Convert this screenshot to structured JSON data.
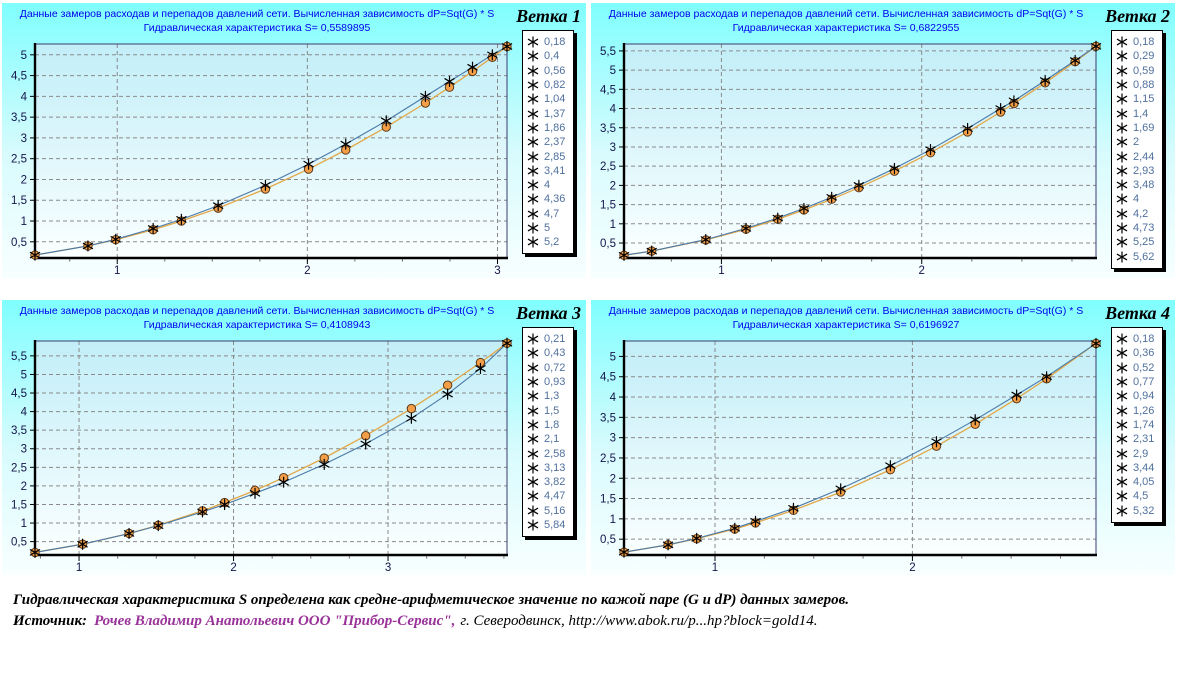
{
  "colors": {
    "panel_top": "#7ffefe",
    "plot_top": "#c2eef8",
    "plot_bottom": "#fbffff",
    "title_text": "#0000ee",
    "axis_label_text": "#14144a",
    "legend_text": "#50719e",
    "measured_line": "#4a7aa8",
    "fitted_line": "#e2a848",
    "circle_fill": "#f49f47",
    "circle_stroke": "#5a3a1a",
    "star_marker": "#000000",
    "source_author_color": "#993399"
  },
  "chart_data": [
    {
      "type": "scatter",
      "branch": "Ветка 1",
      "title_line1": "Данные замеров расходав и перепадов давлений сети. Вычисленная зависимость dP=Sqt(G) * S",
      "title_line2": "Гидравлическая характеристика S= 0,5589895",
      "S": 0.5589895,
      "legend_labels": [
        "0,18",
        "0,4",
        "0,56",
        "0,82",
        "1,04",
        "1,37",
        "1,86",
        "2,37",
        "2,85",
        "3,41",
        "4",
        "4,36",
        "4,7",
        "5",
        "5,2"
      ],
      "measured_dP": [
        0.18,
        0.4,
        0.56,
        0.82,
        1.04,
        1.37,
        1.86,
        2.37,
        2.85,
        3.41,
        4,
        4.36,
        4.7,
        5,
        5.2
      ],
      "fitted_dP_estimated": [
        0.18,
        0.4,
        0.55,
        0.79,
        1.0,
        1.31,
        1.77,
        2.25,
        2.71,
        3.26,
        3.84,
        4.22,
        4.6,
        4.94,
        5.2
      ],
      "x_ticks": [
        1,
        2,
        3
      ],
      "y_ticks": [
        0.5,
        1,
        1.5,
        2,
        2.5,
        3,
        3.5,
        4,
        4.5,
        5
      ]
    },
    {
      "type": "scatter",
      "branch": "Ветка 2",
      "title_line1": "Данные замеров расходав и перепадов давлений сети. Вычисленная зависимость dP=Sqt(G) * S",
      "title_line2": "Гидравлическая характеристика S= 0,6822955",
      "S": 0.6822955,
      "legend_labels": [
        "0,18",
        "0,29",
        "0,59",
        "0,88",
        "1,15",
        "1,4",
        "1,69",
        "2",
        "2,44",
        "2,93",
        "3,48",
        "4",
        "4,2",
        "4,73",
        "5,25",
        "5,62"
      ],
      "measured_dP": [
        0.18,
        0.29,
        0.59,
        0.88,
        1.15,
        1.4,
        1.69,
        2,
        2.44,
        2.93,
        3.48,
        4,
        4.2,
        4.73,
        5.25,
        5.62
      ],
      "fitted_dP_estimated": [
        0.18,
        0.29,
        0.58,
        0.86,
        1.12,
        1.36,
        1.64,
        1.94,
        2.37,
        2.85,
        3.39,
        3.91,
        4.13,
        4.67,
        5.22,
        5.62
      ],
      "x_ticks": [
        1,
        2
      ],
      "y_ticks": [
        0.5,
        1,
        1.5,
        2,
        2.5,
        3,
        3.5,
        4,
        4.5,
        5,
        5.5
      ]
    },
    {
      "type": "scatter",
      "branch": "Ветка 3",
      "title_line1": "Данные замеров расходав и перепадов давлений сети. Вычисленная зависимость dP=Sqt(G) * S",
      "title_line2": "Гидравлическая характеристика S= 0,4108943",
      "S": 0.4108943,
      "legend_labels": [
        "0,21",
        "0,43",
        "0,72",
        "0,93",
        "1,3",
        "1,5",
        "1,8",
        "2,1",
        "2,58",
        "3,13",
        "3,82",
        "4,47",
        "5,16",
        "5,84"
      ],
      "measured_dP": [
        0.21,
        0.43,
        0.72,
        0.93,
        1.3,
        1.5,
        1.8,
        2.1,
        2.58,
        3.13,
        3.82,
        4.47,
        5.16,
        5.84
      ],
      "fitted_dP_estimated": [
        0.21,
        0.43,
        0.72,
        0.94,
        1.33,
        1.55,
        1.88,
        2.22,
        2.75,
        3.35,
        4.08,
        4.71,
        5.32,
        5.84
      ],
      "x_ticks": [
        1,
        2,
        3
      ],
      "y_ticks": [
        0.5,
        1,
        1.5,
        2,
        2.5,
        3,
        3.5,
        4,
        4.5,
        5,
        5.5
      ]
    },
    {
      "type": "scatter",
      "branch": "Ветка 4",
      "title_line1": "Данные замеров расходав и перепадов давлений сети. Вычисленная зависимость dP=Sqt(G) * S",
      "title_line2": "Гидравлическая характеристика S= 0,6196927",
      "S": 0.6196927,
      "legend_labels": [
        "0,18",
        "0,36",
        "0,52",
        "0,77",
        "0,94",
        "1,26",
        "1,74",
        "2,31",
        "2,9",
        "3,44",
        "4,05",
        "4,5",
        "5,32"
      ],
      "measured_dP": [
        0.18,
        0.36,
        0.52,
        0.77,
        0.94,
        1.26,
        1.74,
        2.31,
        2.9,
        3.44,
        4.05,
        4.5,
        5.32
      ],
      "fitted_dP_estimated": [
        0.18,
        0.36,
        0.51,
        0.75,
        0.9,
        1.21,
        1.66,
        2.21,
        2.79,
        3.33,
        3.96,
        4.45,
        5.32
      ],
      "x_ticks": [
        1,
        2
      ],
      "y_ticks": [
        0.5,
        1,
        1.5,
        2,
        2.5,
        3,
        3.5,
        4,
        4.5,
        5
      ]
    }
  ],
  "footer": {
    "line1": "Гидравлическая характеристика S определена как средне-арифметическое значение по кажой паре (G и dP) данных замеров.",
    "source_label": "Источник:",
    "source_author": "Рочев Владимир Анатольевич ООО \"Прибор-Сервис\",",
    "source_rest": "г. Северодвинск, http://www.abok.ru/p...hp?block=gold14."
  }
}
